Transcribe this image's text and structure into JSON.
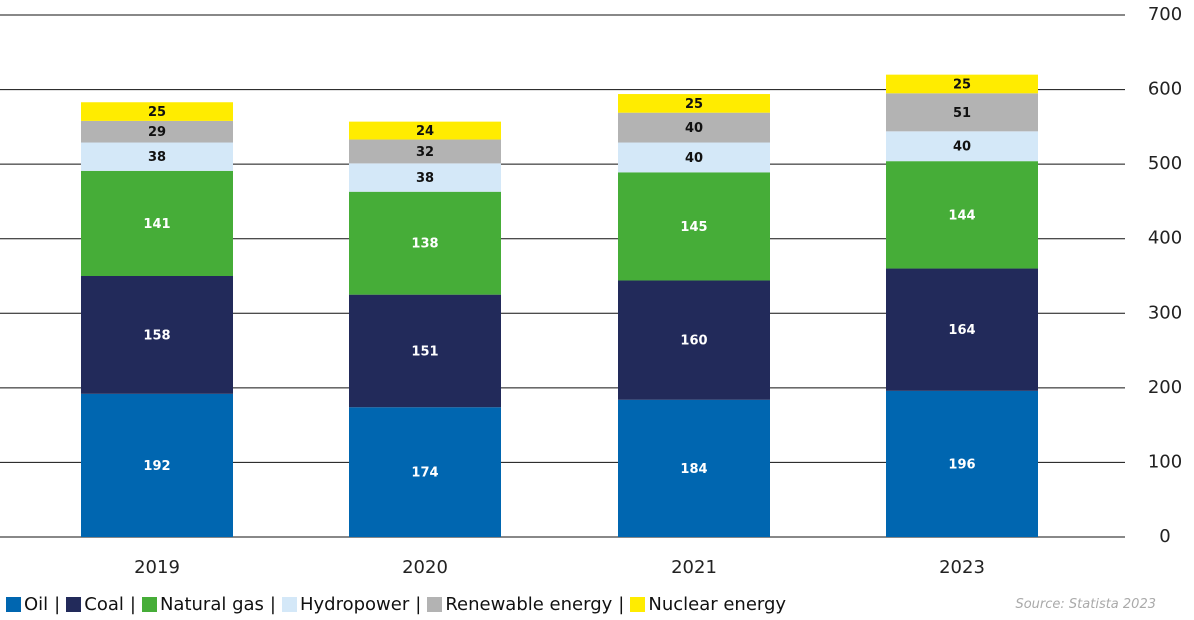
{
  "chart_data": {
    "type": "stacked_bar",
    "categories": [
      "2019",
      "2020",
      "2021",
      "2023"
    ],
    "series": [
      {
        "name": "Oil",
        "color": "#0066b0",
        "values": [
          192,
          174,
          184,
          196
        ]
      },
      {
        "name": "Coal",
        "color": "#222a5a",
        "values": [
          158,
          151,
          160,
          164
        ]
      },
      {
        "name": "Natural gas",
        "color": "#46ad38",
        "values": [
          141,
          138,
          145,
          144
        ]
      },
      {
        "name": "Hydropower",
        "color": "#d4e8f8",
        "values": [
          38,
          38,
          40,
          40
        ]
      },
      {
        "name": "Renewable energy",
        "color": "#b3b3b3",
        "values": [
          29,
          32,
          40,
          51
        ]
      },
      {
        "name": "Nuclear energy",
        "color": "#ffec00",
        "values": [
          25,
          24,
          25,
          25
        ]
      }
    ],
    "ylim": [
      0,
      700
    ],
    "yticks": [
      0,
      100,
      200,
      300,
      400,
      500,
      600,
      700
    ],
    "grid": true,
    "legend_separator": "|",
    "source": "Source: Statista 2023"
  }
}
